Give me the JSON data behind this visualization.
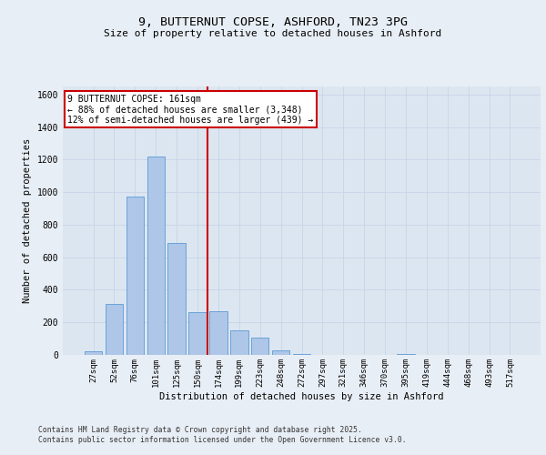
{
  "title": "9, BUTTERNUT COPSE, ASHFORD, TN23 3PG",
  "subtitle": "Size of property relative to detached houses in Ashford",
  "xlabel": "Distribution of detached houses by size in Ashford",
  "ylabel": "Number of detached properties",
  "categories": [
    "27sqm",
    "52sqm",
    "76sqm",
    "101sqm",
    "125sqm",
    "150sqm",
    "174sqm",
    "199sqm",
    "223sqm",
    "248sqm",
    "272sqm",
    "297sqm",
    "321sqm",
    "346sqm",
    "370sqm",
    "395sqm",
    "419sqm",
    "444sqm",
    "468sqm",
    "493sqm",
    "517sqm"
  ],
  "values": [
    20,
    315,
    975,
    1220,
    690,
    265,
    270,
    150,
    105,
    30,
    5,
    0,
    0,
    0,
    0,
    5,
    0,
    0,
    0,
    0,
    0
  ],
  "bar_color": "#aec6e8",
  "bar_edge_color": "#5b9bd5",
  "grid_color": "#c8d4e8",
  "background_color": "#dce6f1",
  "fig_background_color": "#e8eef5",
  "property_line_x": 6.0,
  "annotation_text": "9 BUTTERNUT COPSE: 161sqm\n← 88% of detached houses are smaller (3,348)\n12% of semi-detached houses are larger (439) →",
  "annotation_box_facecolor": "#ffffff",
  "annotation_box_edgecolor": "#cc0000",
  "vline_color": "#cc0000",
  "footer_line1": "Contains HM Land Registry data © Crown copyright and database right 2025.",
  "footer_line2": "Contains public sector information licensed under the Open Government Licence v3.0.",
  "ylim": [
    0,
    1650
  ],
  "yticks": [
    0,
    200,
    400,
    600,
    800,
    1000,
    1200,
    1400,
    1600
  ]
}
